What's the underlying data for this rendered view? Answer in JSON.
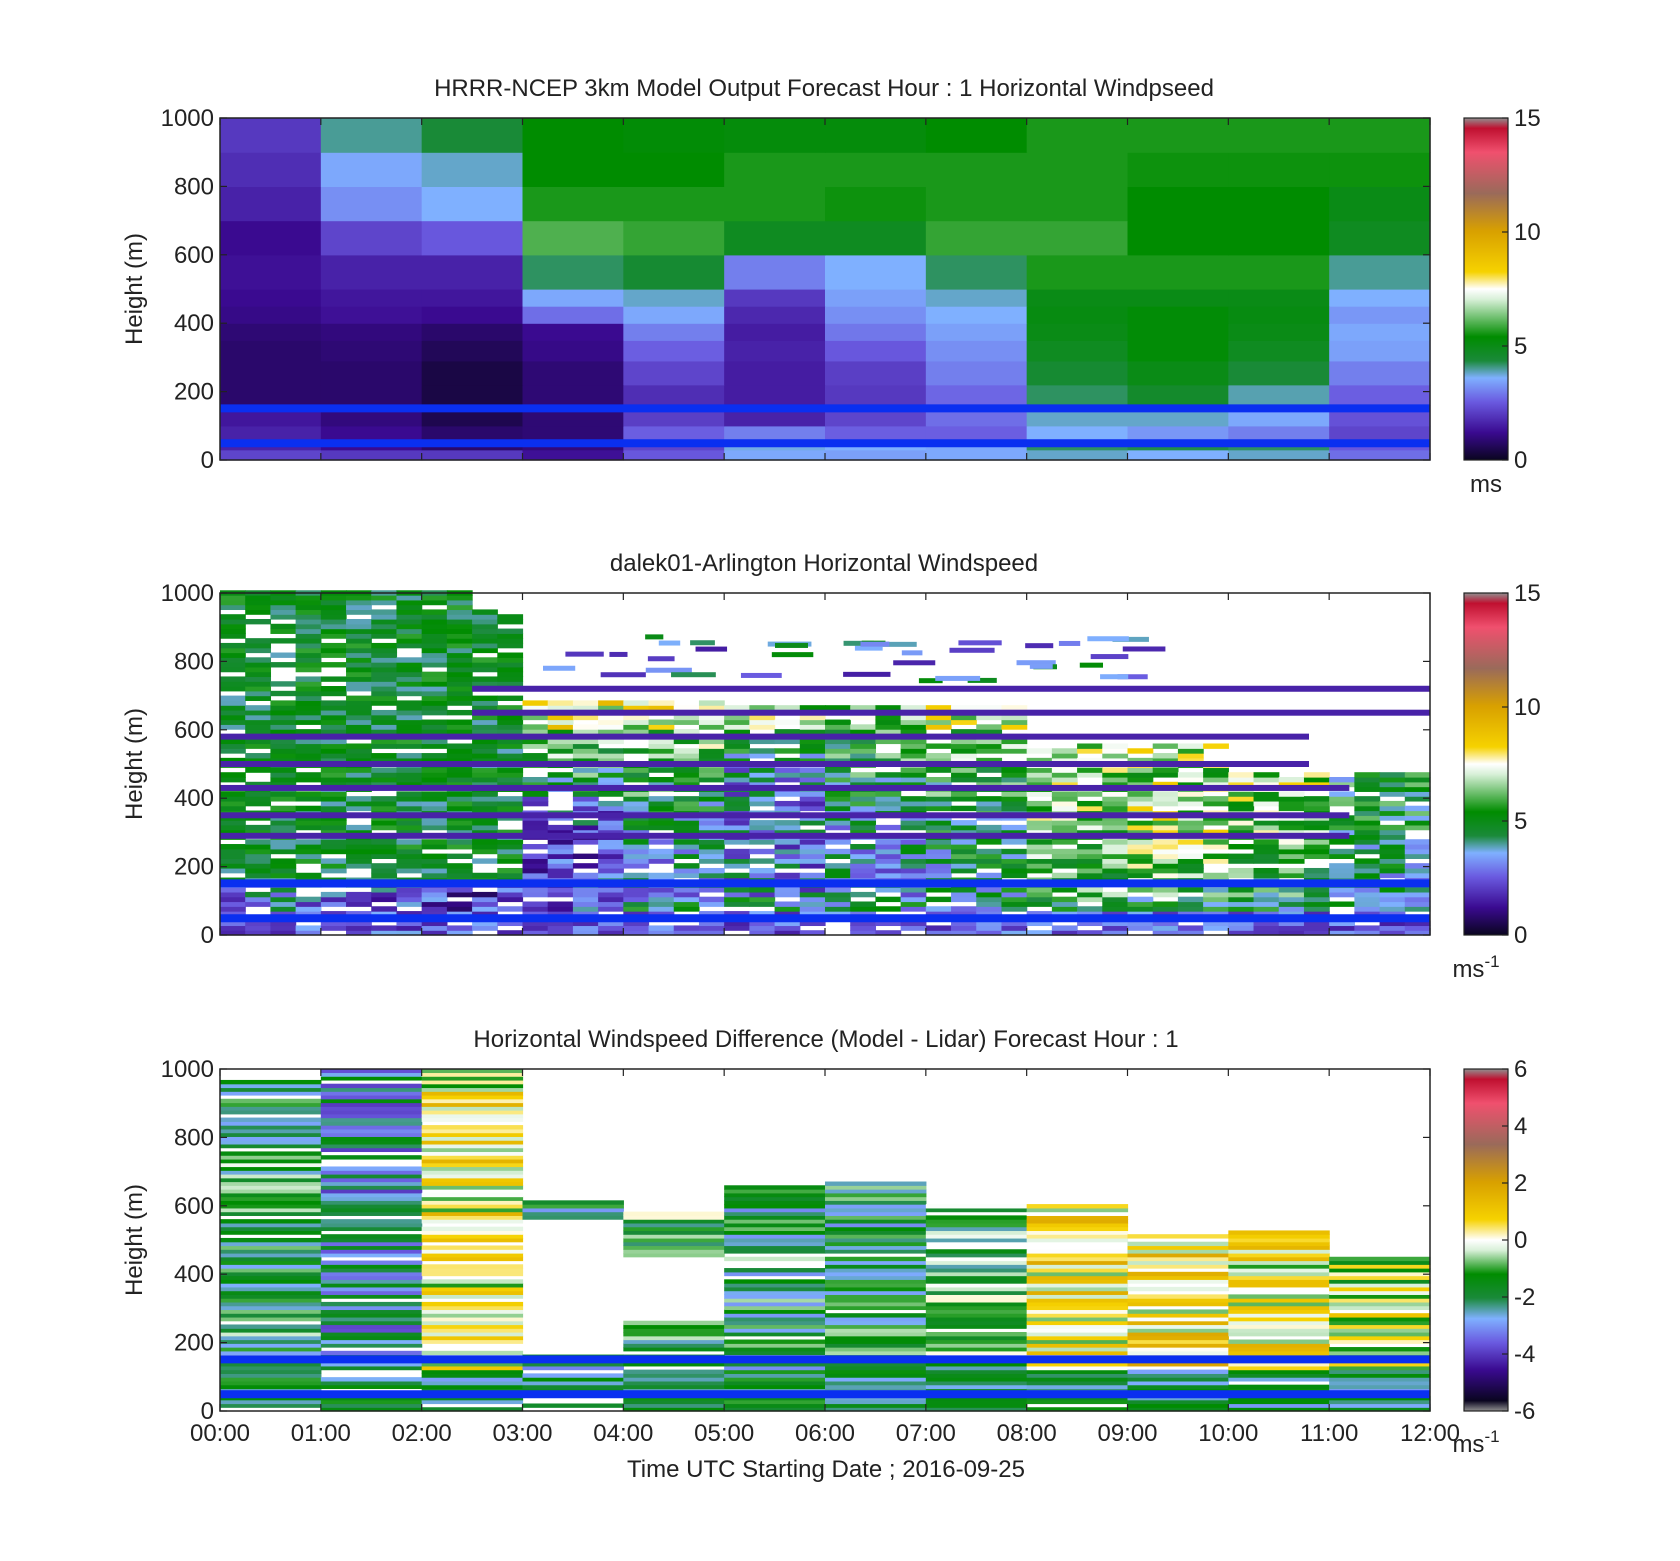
{
  "figure": {
    "xlabel": "Time UTC  Starting Date ; 2016-09-25",
    "x_ticks": [
      "00:00",
      "01:00",
      "02:00",
      "03:00",
      "04:00",
      "05:00",
      "06:00",
      "07:00",
      "08:00",
      "09:00",
      "10:00",
      "11:00",
      "12:00"
    ]
  },
  "chart_data": [
    {
      "type": "heatmap",
      "title": "HRRR-NCEP 3km Model Output   Forecast Hour : 1 Horizontal Windpseed",
      "ylabel": "Height (m)",
      "ylim": [
        0,
        1000
      ],
      "y_ticks": [
        "0",
        "200",
        "400",
        "600",
        "800",
        "1000"
      ],
      "colorbar": {
        "unit": "ms",
        "ticks": [
          "0",
          "5",
          "10",
          "15"
        ],
        "range": [
          0,
          15
        ],
        "colormap": "wind"
      },
      "x_hours": [
        0,
        1,
        2,
        3,
        4,
        5,
        6,
        7,
        8,
        9,
        10,
        11
      ],
      "height_levels_m": [
        0,
        30,
        60,
        100,
        160,
        220,
        290,
        350,
        400,
        450,
        500,
        600,
        700,
        800,
        900,
        1000
      ],
      "values": [
        [
          2.2,
          2.0,
          2.0,
          1.3,
          2.5,
          3.5,
          3.4,
          3.5,
          3.8,
          3.6,
          3.8,
          2.8
        ],
        [
          1.6,
          1.2,
          0.8,
          1.0,
          2.2,
          3.7,
          3.6,
          3.5,
          4.2,
          4.3,
          4.2,
          2.5
        ],
        [
          1.6,
          1.2,
          0.8,
          0.9,
          2.6,
          3.0,
          2.6,
          2.6,
          3.6,
          3.3,
          3.0,
          2.2
        ],
        [
          1.4,
          1.0,
          0.5,
          0.9,
          2.1,
          1.6,
          2.2,
          2.8,
          3.8,
          3.8,
          3.5,
          2.4
        ],
        [
          0.8,
          0.8,
          0.4,
          0.9,
          1.8,
          1.5,
          2.0,
          2.7,
          4.2,
          4.6,
          3.9,
          2.6
        ],
        [
          0.8,
          0.8,
          0.4,
          0.9,
          2.2,
          1.5,
          2.1,
          3.0,
          4.5,
          5.0,
          4.4,
          3.0
        ],
        [
          0.8,
          0.9,
          0.6,
          1.1,
          2.6,
          1.6,
          2.5,
          3.2,
          4.8,
          5.3,
          4.8,
          3.4
        ],
        [
          0.9,
          1.0,
          0.8,
          1.2,
          3.0,
          1.5,
          2.9,
          3.4,
          5.0,
          5.3,
          5.0,
          3.5
        ],
        [
          1.1,
          1.3,
          1.2,
          2.8,
          3.5,
          1.7,
          3.2,
          3.6,
          5.1,
          5.3,
          5.1,
          3.3
        ],
        [
          1.2,
          1.4,
          1.4,
          3.5,
          3.8,
          2.0,
          3.4,
          3.8,
          5.0,
          5.0,
          5.0,
          3.6
        ],
        [
          1.3,
          1.6,
          1.6,
          4.2,
          4.5,
          3.0,
          3.6,
          4.2,
          5.6,
          5.6,
          5.6,
          4.0
        ],
        [
          1.2,
          2.2,
          2.5,
          6.0,
          5.8,
          4.8,
          4.8,
          5.8,
          5.8,
          5.4,
          5.4,
          4.8
        ],
        [
          1.6,
          3.2,
          3.6,
          5.6,
          5.6,
          5.6,
          5.5,
          5.6,
          5.6,
          5.4,
          5.4,
          5.0
        ],
        [
          1.8,
          3.5,
          3.8,
          5.4,
          5.4,
          5.6,
          5.6,
          5.6,
          5.6,
          5.5,
          5.5,
          5.5
        ],
        [
          2.0,
          4.0,
          4.4,
          5.4,
          5.3,
          5.2,
          5.2,
          5.4,
          5.6,
          5.6,
          5.6,
          5.6
        ]
      ],
      "horizontal_lines_m": [
        49,
        151
      ]
    },
    {
      "type": "heatmap",
      "title": "dalek01-Arlington  Horizontal Windspeed",
      "ylabel": "Height (m)",
      "ylim": [
        0,
        1000
      ],
      "y_ticks": [
        "0",
        "200",
        "400",
        "600",
        "800",
        "1000"
      ],
      "colorbar": {
        "unit": "ms",
        "unit_sup": "-1",
        "ticks": [
          "0",
          "5",
          "10",
          "15"
        ],
        "range": [
          0,
          15
        ],
        "colormap": "wind"
      },
      "bin_minutes": 15,
      "height_resolution_m": 14,
      "horizontal_lines_m": [
        49,
        151
      ]
    },
    {
      "type": "heatmap",
      "title": "Horizontal Windspeed Difference (Model - Lidar) Forecast Hour : 1",
      "ylabel": "Height (m)",
      "ylim": [
        0,
        1000
      ],
      "y_ticks": [
        "0",
        "200",
        "400",
        "600",
        "800",
        "1000"
      ],
      "colorbar": {
        "unit": "ms",
        "unit_sup": "-1",
        "ticks": [
          "-6",
          "-4",
          "-2",
          "0",
          "2",
          "4",
          "6"
        ],
        "range": [
          -6,
          6
        ],
        "colormap": "diff"
      },
      "x_hours": [
        0,
        1,
        2,
        3,
        4,
        5,
        6,
        7,
        8,
        9,
        10,
        11
      ],
      "column_top_m": [
        960,
        1000,
        1000,
        610,
        580,
        650,
        670,
        600,
        600,
        520,
        520,
        450
      ],
      "column_mean_diff": [
        -1.5,
        -2.6,
        0.2,
        -2.3,
        -1.2,
        -1.8,
        -1.8,
        -1.2,
        0.4,
        0.6,
        0.3,
        -0.3
      ],
      "horizontal_lines_m": [
        49,
        151
      ]
    }
  ]
}
